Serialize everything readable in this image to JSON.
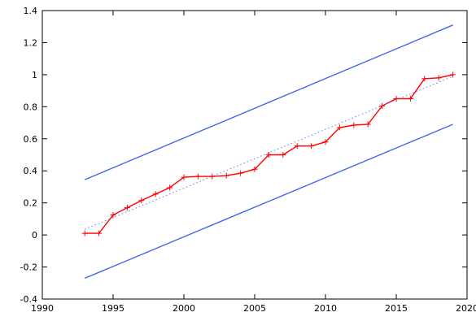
{
  "chart_data": {
    "type": "line",
    "title": "",
    "xlabel": "",
    "ylabel": "",
    "xlim": [
      1990,
      2020
    ],
    "ylim": [
      -0.4,
      1.4
    ],
    "x_ticks": [
      "1990",
      "1995",
      "2000",
      "2005",
      "2010",
      "2015",
      "2020"
    ],
    "y_ticks": [
      "-0.4",
      "-0.2",
      "0",
      "0.2",
      "0.4",
      "0.6",
      "0.8",
      "1",
      "1.2",
      "1.4"
    ],
    "grid": false,
    "series": [
      {
        "role": "data",
        "color": "#ff0000",
        "style": "solid-with-plus-markers",
        "x": [
          1993,
          1994,
          1995,
          1996,
          1997,
          1998,
          1999,
          2000,
          2001,
          2002,
          2003,
          2004,
          2005,
          2006,
          2007,
          2008,
          2009,
          2010,
          2011,
          2012,
          2013,
          2014,
          2015,
          2016,
          2017,
          2018,
          2019
        ],
        "y": [
          0.01,
          0.01,
          0.125,
          0.17,
          0.215,
          0.255,
          0.295,
          0.36,
          0.365,
          0.365,
          0.37,
          0.385,
          0.41,
          0.5,
          0.5,
          0.555,
          0.555,
          0.58,
          0.67,
          0.685,
          0.69,
          0.805,
          0.85,
          0.85,
          0.975,
          0.98,
          1.0
        ]
      },
      {
        "role": "trend",
        "color": "#7070ff",
        "style": "dotted",
        "x": [
          1993,
          2019
        ],
        "y": [
          0.035,
          0.99
        ]
      },
      {
        "role": "upper-bound",
        "color": "#4466ee",
        "style": "solid",
        "x": [
          1993,
          2019
        ],
        "y": [
          0.345,
          1.31
        ]
      },
      {
        "role": "lower-bound",
        "color": "#4466ee",
        "style": "solid",
        "x": [
          1993,
          2019
        ],
        "y": [
          -0.27,
          0.69
        ]
      }
    ]
  }
}
